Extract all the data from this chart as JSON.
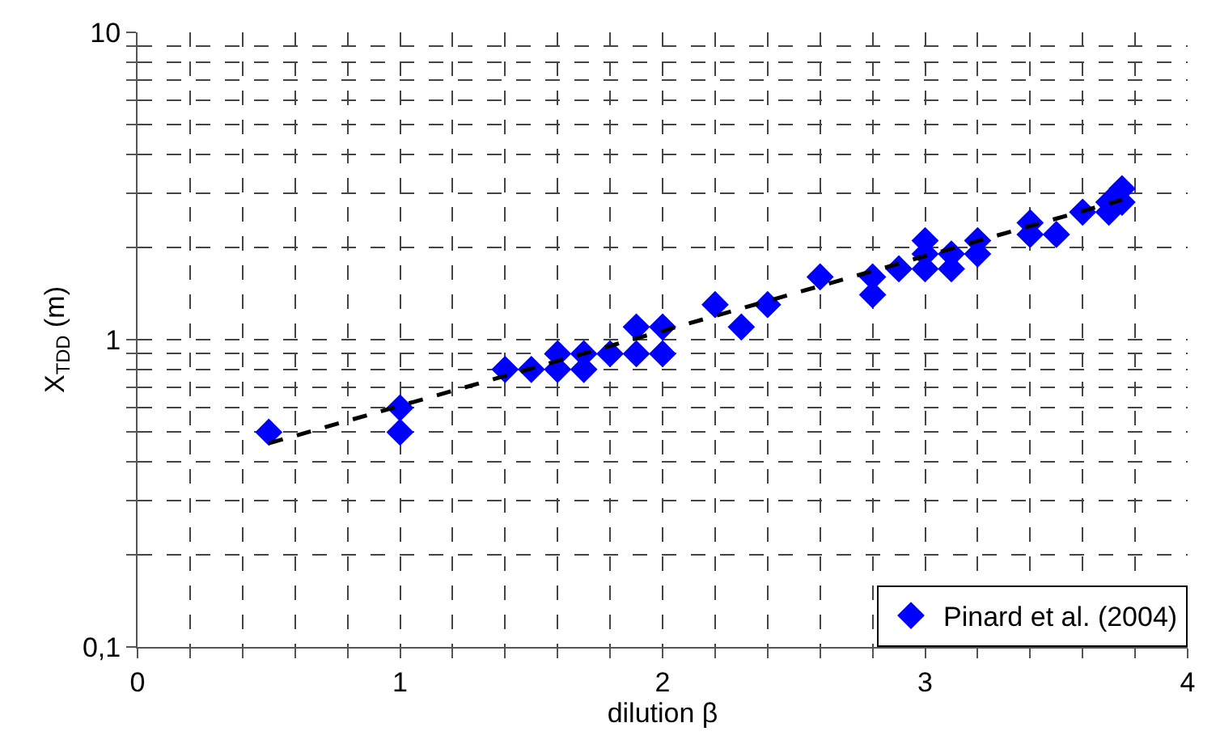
{
  "chart_data": {
    "type": "scatter",
    "xlabel": "dilution β",
    "ylabel": "X$_{TDD}$ (m)",
    "log": "y",
    "xlim": [
      0,
      4
    ],
    "ylim": [
      0.1,
      10
    ],
    "xticks": [
      0,
      {
        "value": 0.2,
        "label": null
      },
      {
        "value": 0.4,
        "label": null
      },
      {
        "value": 0.6,
        "label": null
      },
      {
        "value": 0.8,
        "label": null
      },
      1,
      {
        "value": 1.2,
        "label": null
      },
      {
        "value": 1.4,
        "label": null
      },
      {
        "value": 1.6,
        "label": null
      },
      {
        "value": 1.8,
        "label": null
      },
      2,
      {
        "value": 2.2,
        "label": null
      },
      {
        "value": 2.4,
        "label": null
      },
      {
        "value": 2.6,
        "label": null
      },
      {
        "value": 2.8,
        "label": null
      },
      3,
      {
        "value": 3.2,
        "label": null
      },
      {
        "value": 3.4,
        "label": null
      },
      {
        "value": 3.6,
        "label": null
      },
      {
        "value": 3.8,
        "label": null
      },
      4
    ],
    "yticks": [
      {
        "value": 0.1,
        "label": "0,1"
      },
      {
        "value": 0.2,
        "label": null
      },
      {
        "value": 0.3,
        "label": null
      },
      {
        "value": 0.4,
        "label": null
      },
      {
        "value": 0.5,
        "label": null
      },
      {
        "value": 0.6,
        "label": null
      },
      {
        "value": 0.7,
        "label": null
      },
      {
        "value": 0.8,
        "label": null
      },
      {
        "value": 0.9,
        "label": null
      },
      1,
      {
        "value": 2,
        "label": null
      },
      {
        "value": 3,
        "label": null
      },
      {
        "value": 4,
        "label": null
      },
      {
        "value": 5,
        "label": null
      },
      {
        "value": 6,
        "label": null
      },
      {
        "value": 7,
        "label": null
      },
      {
        "value": 8,
        "label": null
      },
      {
        "value": 9,
        "label": null
      },
      10
    ],
    "grid": true,
    "legend": "bottom right",
    "series": [
      {
        "name": "Pinard et al. (2004)",
        "color": "#0000ff",
        "marker": "diamond",
        "x": [
          0.5,
          1,
          1,
          1.4,
          1.5,
          1.6,
          1.6,
          1.7,
          1.7,
          1.8,
          1.9,
          1.9,
          2,
          2,
          2.2,
          2.3,
          2.4,
          2.6,
          2.8,
          2.8,
          2.9,
          3,
          3,
          3,
          3.1,
          3.1,
          3.2,
          3.2,
          3.4,
          3.4,
          3.5,
          3.6,
          3.7,
          3.7,
          3.75,
          3.75
        ],
        "values": [
          0.5,
          0.6,
          0.5,
          0.8,
          0.8,
          0.9,
          0.8,
          0.9,
          0.8,
          0.9,
          1.1,
          0.9,
          1.1,
          0.9,
          1.3,
          1.1,
          1.3,
          1.6,
          1.6,
          1.4,
          1.7,
          2.1,
          1.9,
          1.7,
          1.9,
          1.7,
          2.1,
          1.9,
          2.4,
          2.2,
          2.2,
          2.6,
          2.6,
          2.8,
          3.1,
          2.8
        ]
      },
      {
        "type": "line",
        "color": "#000000",
        "line_style": "dashed",
        "marker": "none",
        "x": [
          0.5,
          3.75
        ],
        "values": [
          0.46,
          2.85
        ]
      }
    ]
  }
}
